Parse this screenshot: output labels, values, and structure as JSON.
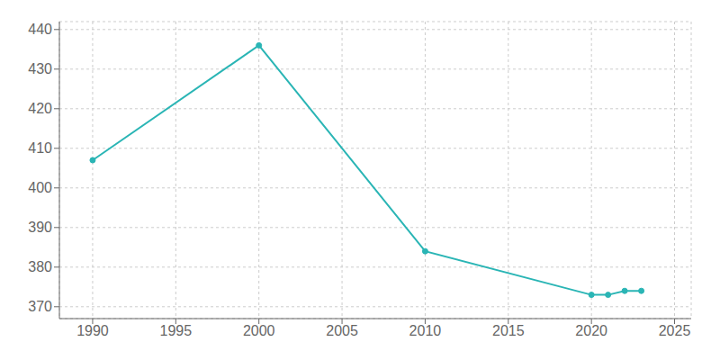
{
  "chart_data": {
    "type": "line",
    "x": [
      1990,
      2000,
      2010,
      2020,
      2021,
      2022,
      2023
    ],
    "values": [
      407,
      436,
      384,
      373,
      373,
      374,
      374
    ],
    "color": "#2ab5b5",
    "marker": "circle",
    "xlim": [
      1988,
      2026
    ],
    "ylim": [
      367,
      442
    ],
    "xticks": [
      1990,
      1995,
      2000,
      2005,
      2010,
      2015,
      2020,
      2025
    ],
    "yticks": [
      370,
      380,
      390,
      400,
      410,
      420,
      430,
      440
    ],
    "grid": true
  }
}
